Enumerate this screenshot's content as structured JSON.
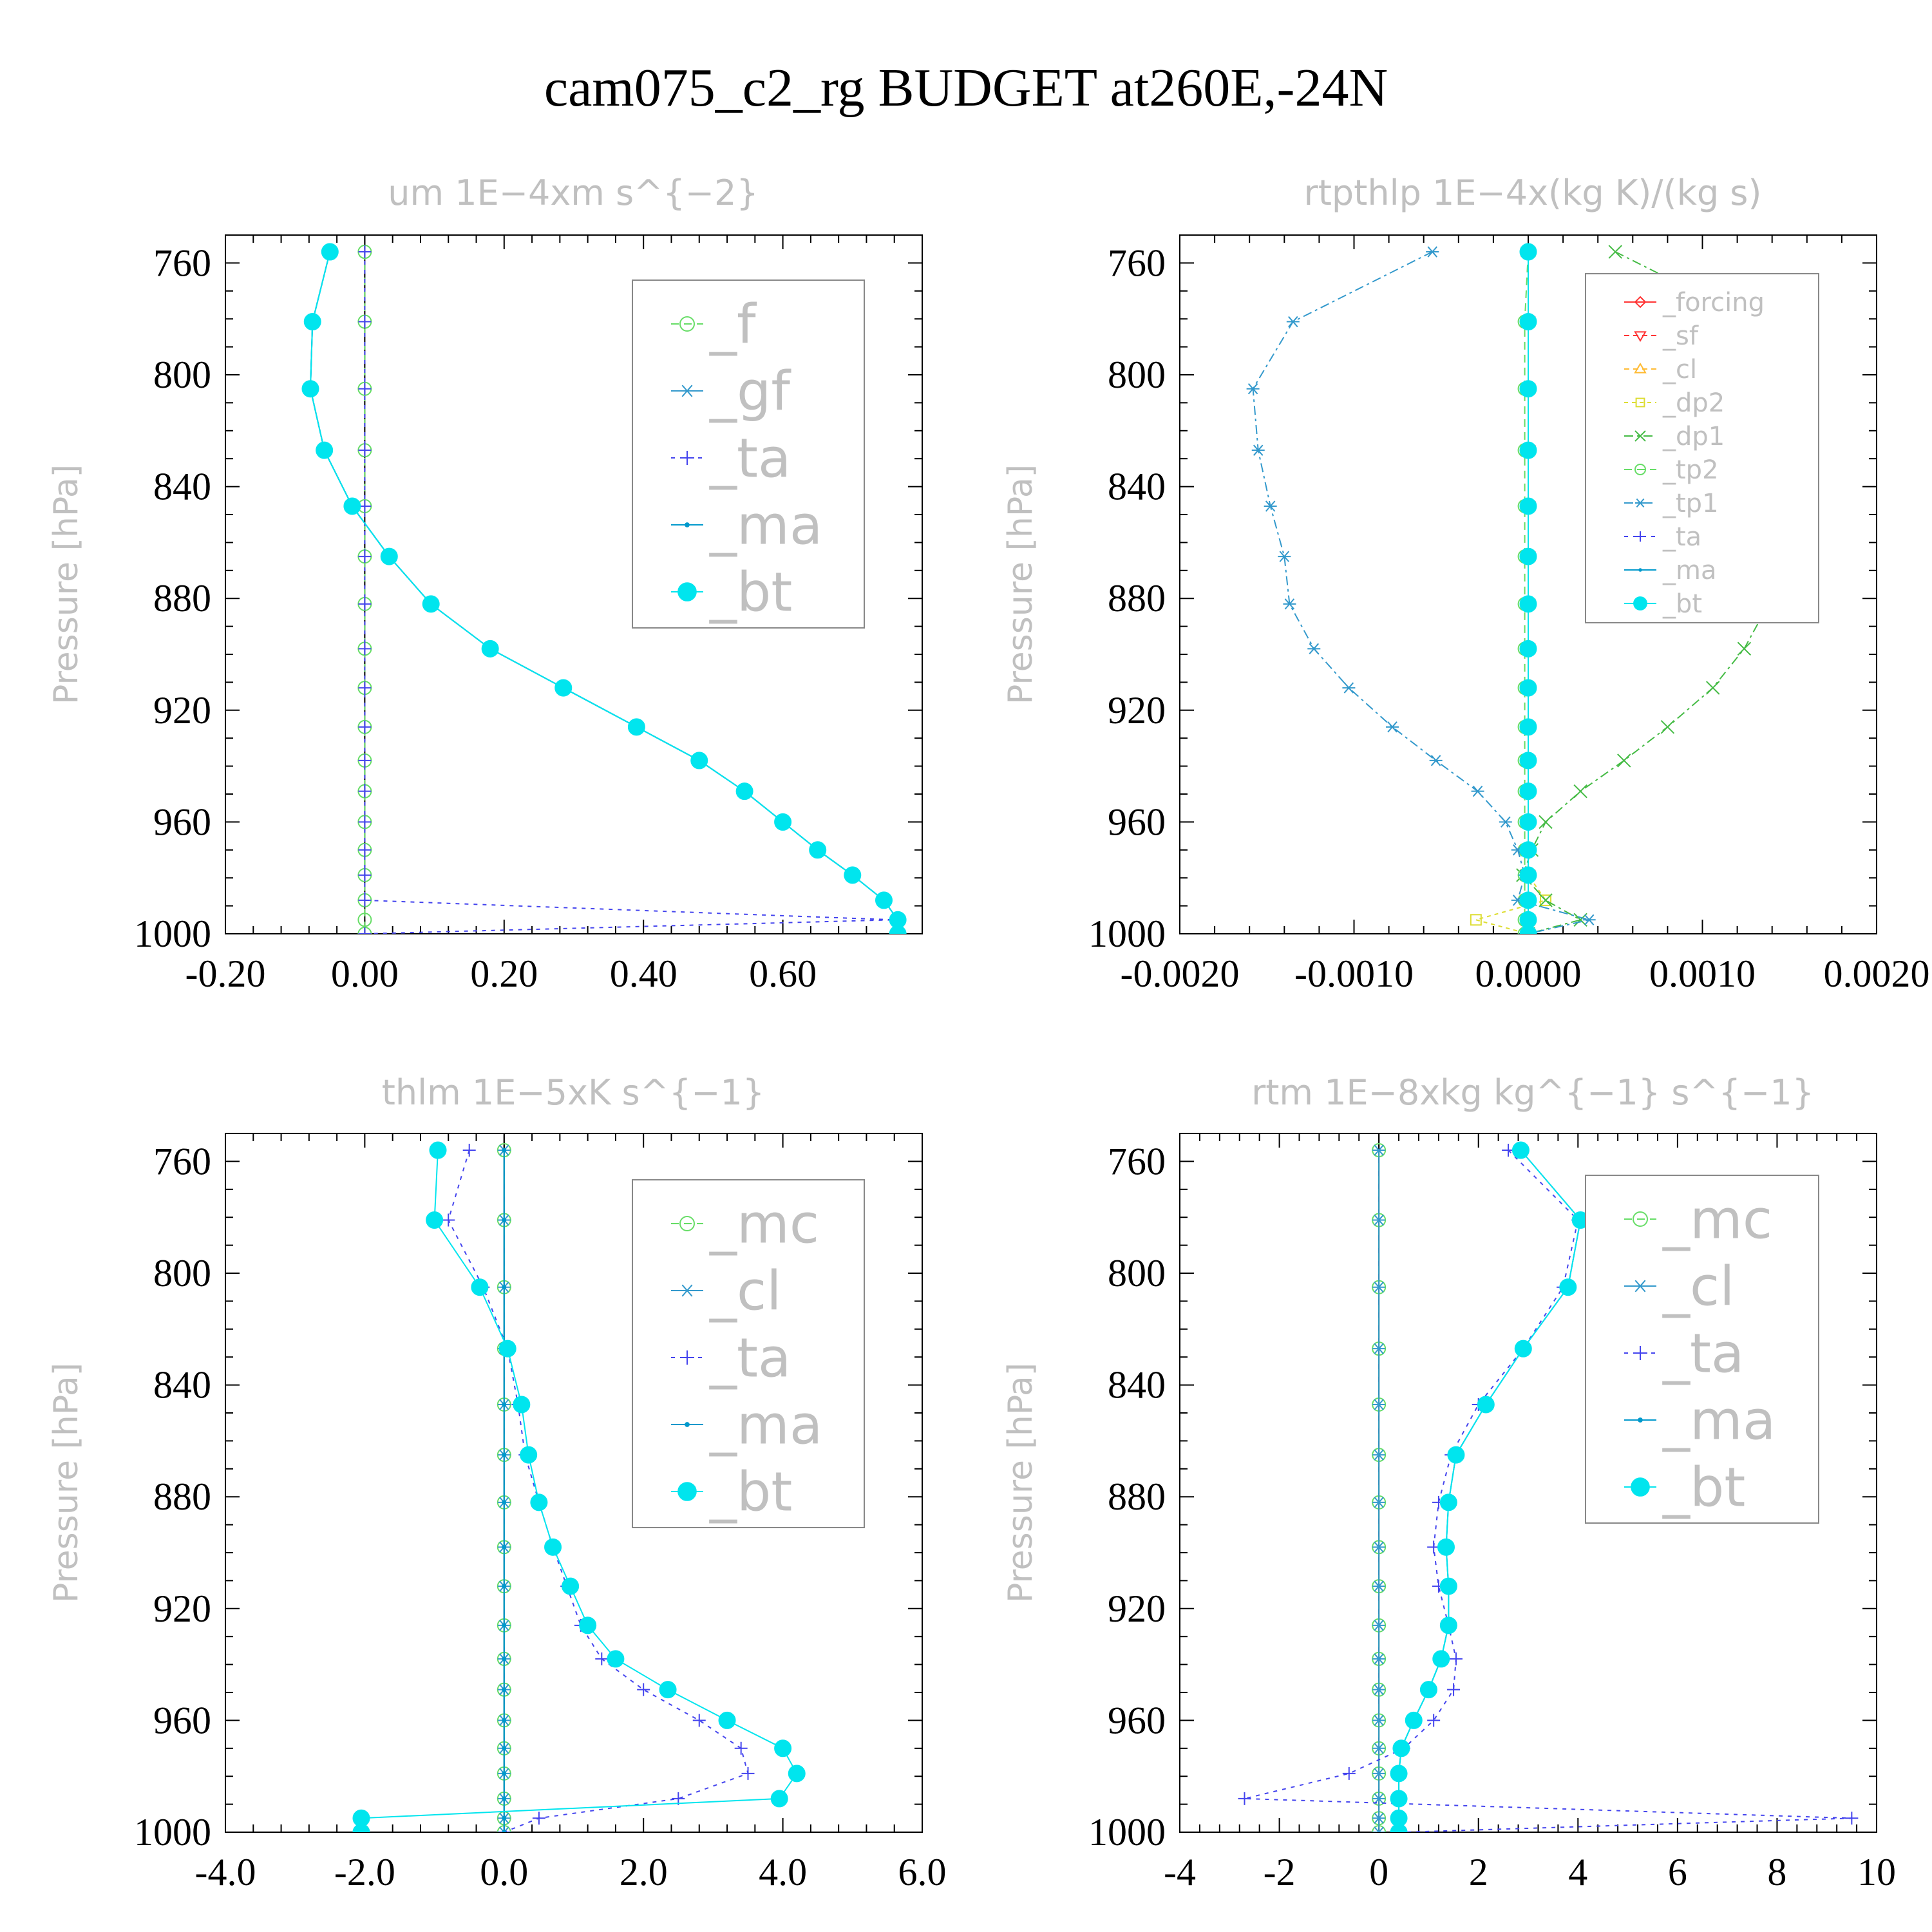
{
  "title": "cam075_c2_rg  BUDGET at260E,-24N",
  "chart_data": [
    {
      "type": "line",
      "title": "um   1E−4xm  s^{−2}",
      "ylabel": "Pressure [hPa]",
      "yticks": [
        760,
        800,
        840,
        880,
        920,
        960,
        1000
      ],
      "ylim": [
        1000,
        750
      ],
      "xticks": [
        -0.2,
        0.0,
        0.2,
        0.4,
        0.6
      ],
      "xtick_labels": [
        "-0.20",
        "0.00",
        "0.20",
        "0.40",
        "0.60"
      ],
      "xlim": [
        -0.2,
        0.8
      ],
      "y": [
        756,
        781,
        805,
        827,
        847,
        865,
        882,
        898,
        912,
        926,
        938,
        949,
        960,
        970,
        979,
        988,
        995,
        1000
      ],
      "series": [
        {
          "name": "_f",
          "color": "#66dd66",
          "marker": "circle-open",
          "dash": "12 8",
          "values": [
            0,
            0,
            0,
            0,
            0,
            0,
            0,
            0,
            0,
            0,
            0,
            0,
            0,
            0,
            0,
            0,
            0,
            0
          ]
        },
        {
          "name": "_gf",
          "color": "#3399cc",
          "marker": "asterisk",
          "dash": "",
          "values": [
            -0.05,
            -0.075,
            -0.078,
            -0.058,
            -0.018,
            0.035,
            0.095,
            0.18,
            0.285,
            0.39,
            0.48,
            0.545,
            0.6,
            0.65,
            0.7,
            0.745,
            0.765,
            0.765
          ]
        },
        {
          "name": "_ta",
          "color": "#4444ee",
          "marker": "plus",
          "dash": "6 8",
          "values": [
            0,
            0,
            0,
            0,
            0,
            0,
            0,
            0,
            0,
            0,
            0,
            0,
            0,
            0,
            0,
            0,
            0.76,
            0
          ]
        },
        {
          "name": "_ma",
          "color": "#0099cc",
          "marker": "dot",
          "dash": "",
          "values": [
            -0.05,
            -0.075,
            -0.078,
            -0.058,
            -0.018,
            0.035,
            0.095,
            0.18,
            0.285,
            0.39,
            0.48,
            0.545,
            0.6,
            0.65,
            0.7,
            0.745,
            0.765,
            0.765
          ]
        },
        {
          "name": "_bt",
          "color": "#00e5ee",
          "marker": "filled-circle",
          "dash": "",
          "values": [
            -0.05,
            -0.075,
            -0.078,
            -0.058,
            -0.018,
            0.035,
            0.095,
            0.18,
            0.285,
            0.39,
            0.48,
            0.545,
            0.6,
            0.65,
            0.7,
            0.745,
            0.765,
            0.765
          ]
        }
      ]
    },
    {
      "type": "line",
      "title": "rtpthlp   1E−4x(kg K)/(kg s)",
      "ylabel": "Pressure [hPa]",
      "yticks": [
        760,
        800,
        840,
        880,
        920,
        960,
        1000
      ],
      "ylim": [
        1000,
        750
      ],
      "xticks": [
        -0.002,
        -0.001,
        0.0,
        0.001,
        0.002
      ],
      "xtick_labels": [
        "-0.0020",
        "-0.0010",
        "0.0000",
        "0.0010",
        "0.0020"
      ],
      "xlim": [
        -0.002,
        0.002
      ],
      "y": [
        756,
        781,
        805,
        827,
        847,
        865,
        882,
        898,
        912,
        926,
        938,
        949,
        960,
        970,
        979,
        988,
        995,
        1000
      ],
      "series": [
        {
          "name": "_forcing",
          "color": "#ff3333",
          "marker": "diamond-open",
          "dash": "",
          "values": [
            0,
            0,
            0,
            0,
            0,
            0,
            0,
            0,
            0,
            0,
            0,
            0,
            0,
            0,
            0,
            0,
            0,
            0
          ]
        },
        {
          "name": "_sf",
          "color": "#ff3333",
          "marker": "triangle-down",
          "dash": "8 6",
          "values": [
            0,
            0,
            0,
            0,
            0,
            0,
            0,
            0,
            0,
            0,
            0,
            0,
            0,
            0,
            0,
            0,
            0,
            0
          ]
        },
        {
          "name": "_cl",
          "color": "#ffbb33",
          "marker": "triangle-up",
          "dash": "8 6",
          "values": [
            0,
            0,
            0,
            0,
            0,
            0,
            0,
            0,
            0,
            0,
            0,
            0,
            0,
            0,
            0,
            0,
            0,
            0
          ]
        },
        {
          "name": "_dp2",
          "color": "#dddd33",
          "marker": "square-open",
          "dash": "6 6",
          "values": [
            0,
            0,
            0,
            0,
            0,
            0,
            0,
            0,
            0,
            0,
            0,
            0,
            0,
            0,
            0,
            0.0001,
            -0.0003,
            0
          ]
        },
        {
          "name": "_dp1",
          "color": "#44bb44",
          "marker": "cross",
          "dash": "14 6 4 6",
          "values": [
            0.0005,
            0.0013,
            0.0016,
            0.00155,
            0.00148,
            0.0014,
            0.00138,
            0.00124,
            0.00106,
            0.0008,
            0.00055,
            0.0003,
            0.0001,
            2e-05,
            -3e-05,
            0.0001,
            0.0003,
            0
          ]
        },
        {
          "name": "_tp2",
          "color": "#66dd66",
          "marker": "circle-open",
          "dash": "12 8",
          "values": [
            0,
            -2e-05,
            -2e-05,
            -2e-05,
            -2e-05,
            -2e-05,
            -2e-05,
            -2e-05,
            -2e-05,
            -2e-05,
            -2e-05,
            -2e-05,
            -2e-05,
            -2e-05,
            -2e-05,
            -2e-05,
            -2e-05,
            -2e-05
          ]
        },
        {
          "name": "_tp1",
          "color": "#3399cc",
          "marker": "asterisk",
          "dash": "14 6 4 6",
          "values": [
            -0.00055,
            -0.00135,
            -0.00158,
            -0.00155,
            -0.00148,
            -0.0014,
            -0.00137,
            -0.00123,
            -0.00103,
            -0.00078,
            -0.00053,
            -0.00029,
            -0.00013,
            -6e-05,
            -2e-05,
            -6e-05,
            0.00035,
            0
          ]
        },
        {
          "name": "_ta",
          "color": "#4444ee",
          "marker": "plus",
          "dash": "6 8",
          "values": [
            0,
            0,
            0,
            0,
            0,
            0,
            0,
            0,
            0,
            0,
            0,
            0,
            0,
            0,
            0,
            0,
            0,
            0
          ]
        },
        {
          "name": "_ma",
          "color": "#0099cc",
          "marker": "dot",
          "dash": "",
          "values": [
            0,
            0,
            0,
            0,
            0,
            0,
            0,
            0,
            0,
            0,
            0,
            0,
            0,
            0,
            0,
            0,
            0,
            0
          ]
        },
        {
          "name": "_bt",
          "color": "#00e5ee",
          "marker": "filled-circle",
          "dash": "",
          "values": [
            0,
            0,
            0,
            0,
            0,
            0,
            0,
            0,
            0,
            0,
            0,
            0,
            0,
            0,
            0,
            0,
            0,
            0
          ]
        }
      ]
    },
    {
      "type": "line",
      "title": "thlm   1E−5xK  s^{−1}",
      "ylabel": "Pressure [hPa]",
      "yticks": [
        760,
        800,
        840,
        880,
        920,
        960,
        1000
      ],
      "ylim": [
        1000,
        750
      ],
      "xticks": [
        -4.0,
        -2.0,
        0.0,
        2.0,
        4.0,
        6.0
      ],
      "xtick_labels": [
        "-4.0",
        "-2.0",
        "0.0",
        "2.0",
        "4.0",
        "6.0"
      ],
      "xlim": [
        -4.0,
        6.0
      ],
      "y": [
        756,
        781,
        805,
        827,
        847,
        865,
        882,
        898,
        912,
        926,
        938,
        949,
        960,
        970,
        979,
        988,
        995,
        1000
      ],
      "series": [
        {
          "name": "_mc",
          "color": "#66dd66",
          "marker": "circle-open",
          "dash": "12 8",
          "values": [
            0,
            0,
            0,
            0,
            0,
            0,
            0,
            0,
            0,
            0,
            0,
            0,
            0,
            0,
            0,
            0,
            0,
            0
          ]
        },
        {
          "name": "_cl",
          "color": "#3399cc",
          "marker": "asterisk",
          "dash": "",
          "values": [
            0,
            0,
            0,
            0,
            0,
            0,
            0,
            0,
            0,
            0,
            0,
            0,
            0,
            0,
            0,
            0,
            0,
            0
          ]
        },
        {
          "name": "_ta",
          "color": "#4444ee",
          "marker": "plus",
          "dash": "6 8",
          "values": [
            -0.5,
            -0.8,
            -0.3,
            0.05,
            0.2,
            0.3,
            0.5,
            0.7,
            0.9,
            1.1,
            1.4,
            2.0,
            2.8,
            3.4,
            3.5,
            2.5,
            0.5,
            0
          ]
        },
        {
          "name": "_ma",
          "color": "#0099cc",
          "marker": "dot",
          "dash": "",
          "values": [
            0,
            0,
            0,
            0,
            0,
            0,
            0,
            0,
            0,
            0,
            0,
            0,
            0,
            0,
            0,
            0,
            0,
            0
          ]
        },
        {
          "name": "_bt",
          "color": "#00e5ee",
          "marker": "filled-circle",
          "dash": "",
          "values": [
            -0.95,
            -1.0,
            -0.35,
            0.05,
            0.25,
            0.35,
            0.5,
            0.7,
            0.95,
            1.2,
            1.6,
            2.35,
            3.2,
            4.0,
            4.2,
            3.95,
            -2.05,
            -2.05
          ]
        }
      ]
    },
    {
      "type": "line",
      "title": "rtm   1E−8xkg  kg^{−1}  s^{−1}",
      "ylabel": "Pressure [hPa]",
      "yticks": [
        760,
        800,
        840,
        880,
        920,
        960,
        1000
      ],
      "ylim": [
        1000,
        750
      ],
      "xticks": [
        -4,
        -2,
        0,
        2,
        4,
        6,
        8,
        10
      ],
      "xtick_labels": [
        "-4",
        "-2",
        "0",
        "2",
        "4",
        "6",
        "8",
        "10"
      ],
      "xlim": [
        -4,
        10
      ],
      "y": [
        756,
        781,
        805,
        827,
        847,
        865,
        882,
        898,
        912,
        926,
        938,
        949,
        960,
        970,
        979,
        988,
        995,
        1000
      ],
      "series": [
        {
          "name": "_mc",
          "color": "#66dd66",
          "marker": "circle-open",
          "dash": "12 8",
          "values": [
            0,
            0,
            0,
            0,
            0,
            0,
            0,
            0,
            0,
            0,
            0,
            0,
            0,
            0,
            0,
            0,
            0,
            0
          ]
        },
        {
          "name": "_cl",
          "color": "#3399cc",
          "marker": "asterisk",
          "dash": "",
          "values": [
            0,
            0,
            0,
            0,
            0,
            0,
            0,
            0,
            0,
            0,
            0,
            0,
            0,
            0,
            0,
            0,
            0,
            0
          ]
        },
        {
          "name": "_ta",
          "color": "#4444ee",
          "marker": "plus",
          "dash": "6 8",
          "values": [
            2.6,
            4.0,
            3.7,
            2.9,
            2.0,
            1.45,
            1.2,
            1.1,
            1.2,
            1.4,
            1.55,
            1.5,
            1.1,
            0.5,
            -0.6,
            -2.7,
            9.5,
            0.5
          ]
        },
        {
          "name": "_ma",
          "color": "#0099cc",
          "marker": "dot",
          "dash": "",
          "values": [
            2.85,
            4.05,
            3.8,
            2.9,
            2.15,
            1.55,
            1.4,
            1.35,
            1.4,
            1.4,
            1.25,
            1.0,
            0.7,
            0.45,
            0.4,
            0.4,
            0.4,
            0.4
          ]
        },
        {
          "name": "_bt",
          "color": "#00e5ee",
          "marker": "filled-circle",
          "dash": "",
          "values": [
            2.85,
            4.05,
            3.8,
            2.9,
            2.15,
            1.55,
            1.4,
            1.35,
            1.4,
            1.4,
            1.25,
            1.0,
            0.7,
            0.45,
            0.4,
            0.4,
            0.4,
            0.4
          ]
        }
      ]
    }
  ]
}
